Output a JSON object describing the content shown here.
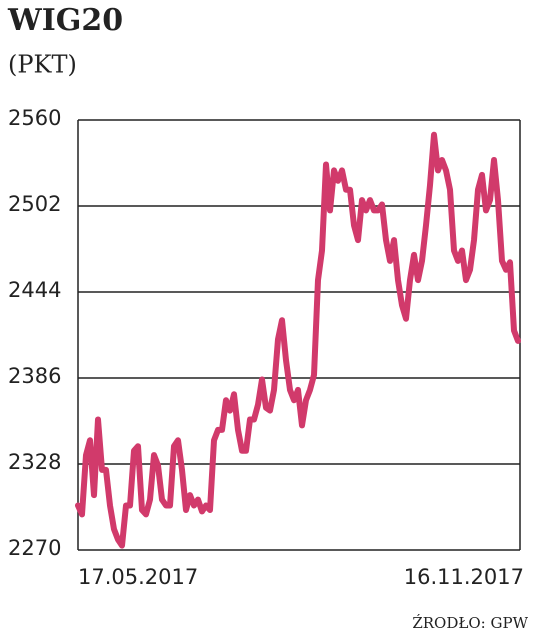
{
  "chart_data": {
    "type": "line",
    "title": "WIG20",
    "subtitle": "(PKT)",
    "source": "ŹRODŁO: GPW",
    "categories": [
      "17.05.2017",
      null,
      null,
      null,
      null,
      null,
      null,
      null,
      null,
      null,
      null,
      null,
      null,
      null,
      null,
      null,
      null,
      null,
      null,
      null,
      null,
      null,
      null,
      null,
      null,
      null,
      null,
      null,
      null,
      null,
      null,
      null,
      null,
      null,
      null,
      null,
      null,
      null,
      null,
      null,
      null,
      null,
      null,
      null,
      null,
      null,
      null,
      null,
      null,
      null,
      null,
      null,
      null,
      null,
      null,
      null,
      null,
      null,
      null,
      null,
      null,
      null,
      null,
      null,
      null,
      null,
      null,
      null,
      null,
      null,
      null,
      null,
      null,
      null,
      null,
      null,
      null,
      null,
      null,
      null,
      null,
      null,
      null,
      null,
      null,
      null,
      null,
      null,
      null,
      null,
      null,
      null,
      null,
      null,
      null,
      null,
      null,
      null,
      null,
      null,
      null,
      null,
      null,
      null,
      null,
      null,
      null,
      null,
      null,
      null,
      "16.11.2017"
    ],
    "series": [
      {
        "name": "WIG20",
        "color": "#d13a6b",
        "values": [
          2300,
          2294,
          2334,
          2344,
          2307,
          2358,
          2324,
          2324,
          2300,
          2284,
          2277,
          2273,
          2300,
          2300,
          2337,
          2340,
          2297,
          2294,
          2304,
          2334,
          2327,
          2304,
          2300,
          2300,
          2340,
          2344,
          2324,
          2297,
          2307,
          2300,
          2304,
          2296,
          2300,
          2297,
          2344,
          2351,
          2351,
          2371,
          2364,
          2375,
          2351,
          2337,
          2337,
          2358,
          2358,
          2368,
          2385,
          2366,
          2364,
          2378,
          2412,
          2425,
          2398,
          2378,
          2371,
          2378,
          2354,
          2371,
          2378,
          2388,
          2452,
          2472,
          2530,
          2499,
          2526,
          2519,
          2526,
          2513,
          2513,
          2489,
          2479,
          2506,
          2499,
          2506,
          2499,
          2499,
          2503,
          2479,
          2465,
          2479,
          2452,
          2435,
          2426,
          2452,
          2469,
          2452,
          2465,
          2489,
          2516,
          2550,
          2526,
          2533,
          2526,
          2513,
          2472,
          2465,
          2472,
          2452,
          2459,
          2479,
          2513,
          2523,
          2499,
          2506,
          2533,
          2506,
          2465,
          2459,
          2464,
          2418,
          2411
        ]
      }
    ],
    "ylim": [
      2270,
      2560
    ],
    "yticks": [
      2270,
      2328,
      2386,
      2444,
      2502,
      2560
    ],
    "grid": true
  }
}
